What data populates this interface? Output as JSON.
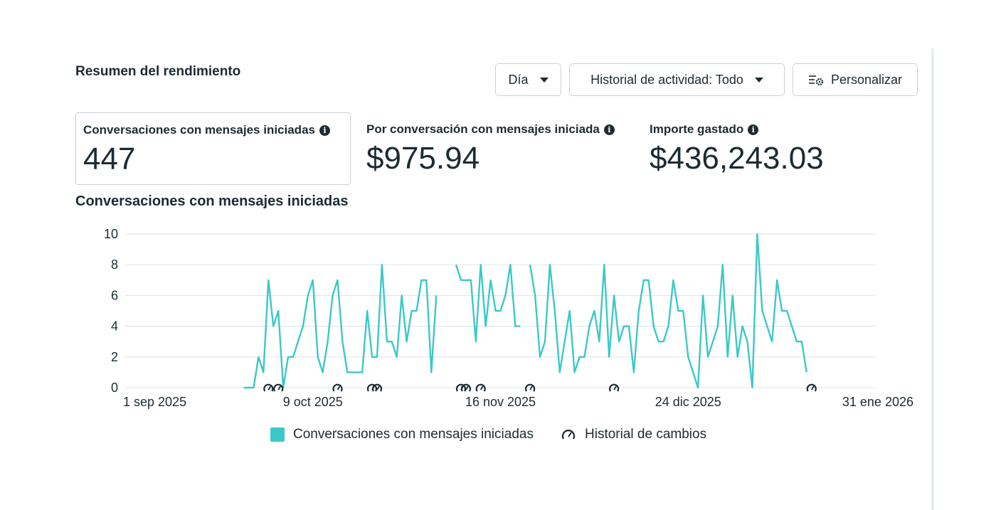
{
  "header": {
    "title": "Resumen del rendimiento",
    "day_label": "Día",
    "history_label": "Historial de actividad: Todo",
    "customize_label": "Personalizar"
  },
  "metrics": [
    {
      "label": "Conversaciones con mensajes iniciadas",
      "value": "447"
    },
    {
      "label": "Por conversación con mensajes iniciada",
      "value": "$975.94"
    },
    {
      "label": "Importe gastado",
      "value": "$436,243.03"
    }
  ],
  "legend": {
    "series_label": "Conversaciones con mensajes iniciadas",
    "changes_label": "Historial de cambios"
  },
  "colors": {
    "line": "#3cc8c8",
    "grid": "#e4e6eb",
    "text": "#1c2b33"
  },
  "chart_data": {
    "type": "line",
    "title": "Conversaciones con mensajes iniciadas",
    "x_start": "2025-09-01",
    "x_end": "2026-01-31",
    "x_ticks": [
      "1 sep 2025",
      "9 oct 2025",
      "16 nov 2025",
      "24 dic 2025",
      "31 ene 2026"
    ],
    "y_ticks": [
      0,
      2,
      4,
      6,
      8,
      10
    ],
    "ylim": [
      0,
      10
    ],
    "grid": true,
    "series": [
      {
        "name": "Conversaciones con mensajes iniciadas",
        "segments": [
          {
            "start": "2025-09-25",
            "values": [
              0,
              0,
              0,
              2,
              1,
              7,
              4,
              5,
              0,
              2,
              2,
              3,
              4,
              6,
              7,
              2,
              1,
              3,
              6,
              7,
              3,
              1,
              1,
              1,
              1,
              5,
              2,
              2,
              8,
              3,
              3,
              2,
              6,
              3,
              5,
              5,
              7,
              7,
              1,
              6
            ]
          },
          {
            "start": "2025-11-07",
            "values": [
              8,
              7,
              7,
              7,
              3,
              8,
              4,
              7,
              5,
              5,
              6,
              8,
              4,
              4
            ]
          },
          {
            "start": "2025-11-22",
            "values": [
              8,
              6,
              2,
              3,
              8,
              5,
              1,
              3,
              5,
              1,
              2,
              2,
              4,
              5,
              3,
              8,
              2,
              6,
              3,
              4,
              4,
              1,
              5,
              7,
              7,
              4,
              3,
              3,
              4,
              7,
              5,
              5,
              2,
              1,
              0,
              6,
              2,
              3,
              4,
              8,
              2,
              6,
              2,
              4,
              3,
              0,
              10,
              5,
              4,
              3,
              7,
              5,
              5,
              4,
              3,
              3,
              1
            ]
          }
        ]
      }
    ],
    "change_markers": [
      "2025-09-30",
      "2025-10-02",
      "2025-10-14",
      "2025-10-21",
      "2025-10-22",
      "2025-11-08",
      "2025-11-09",
      "2025-11-12",
      "2025-11-22",
      "2025-12-09",
      "2026-01-18"
    ]
  }
}
